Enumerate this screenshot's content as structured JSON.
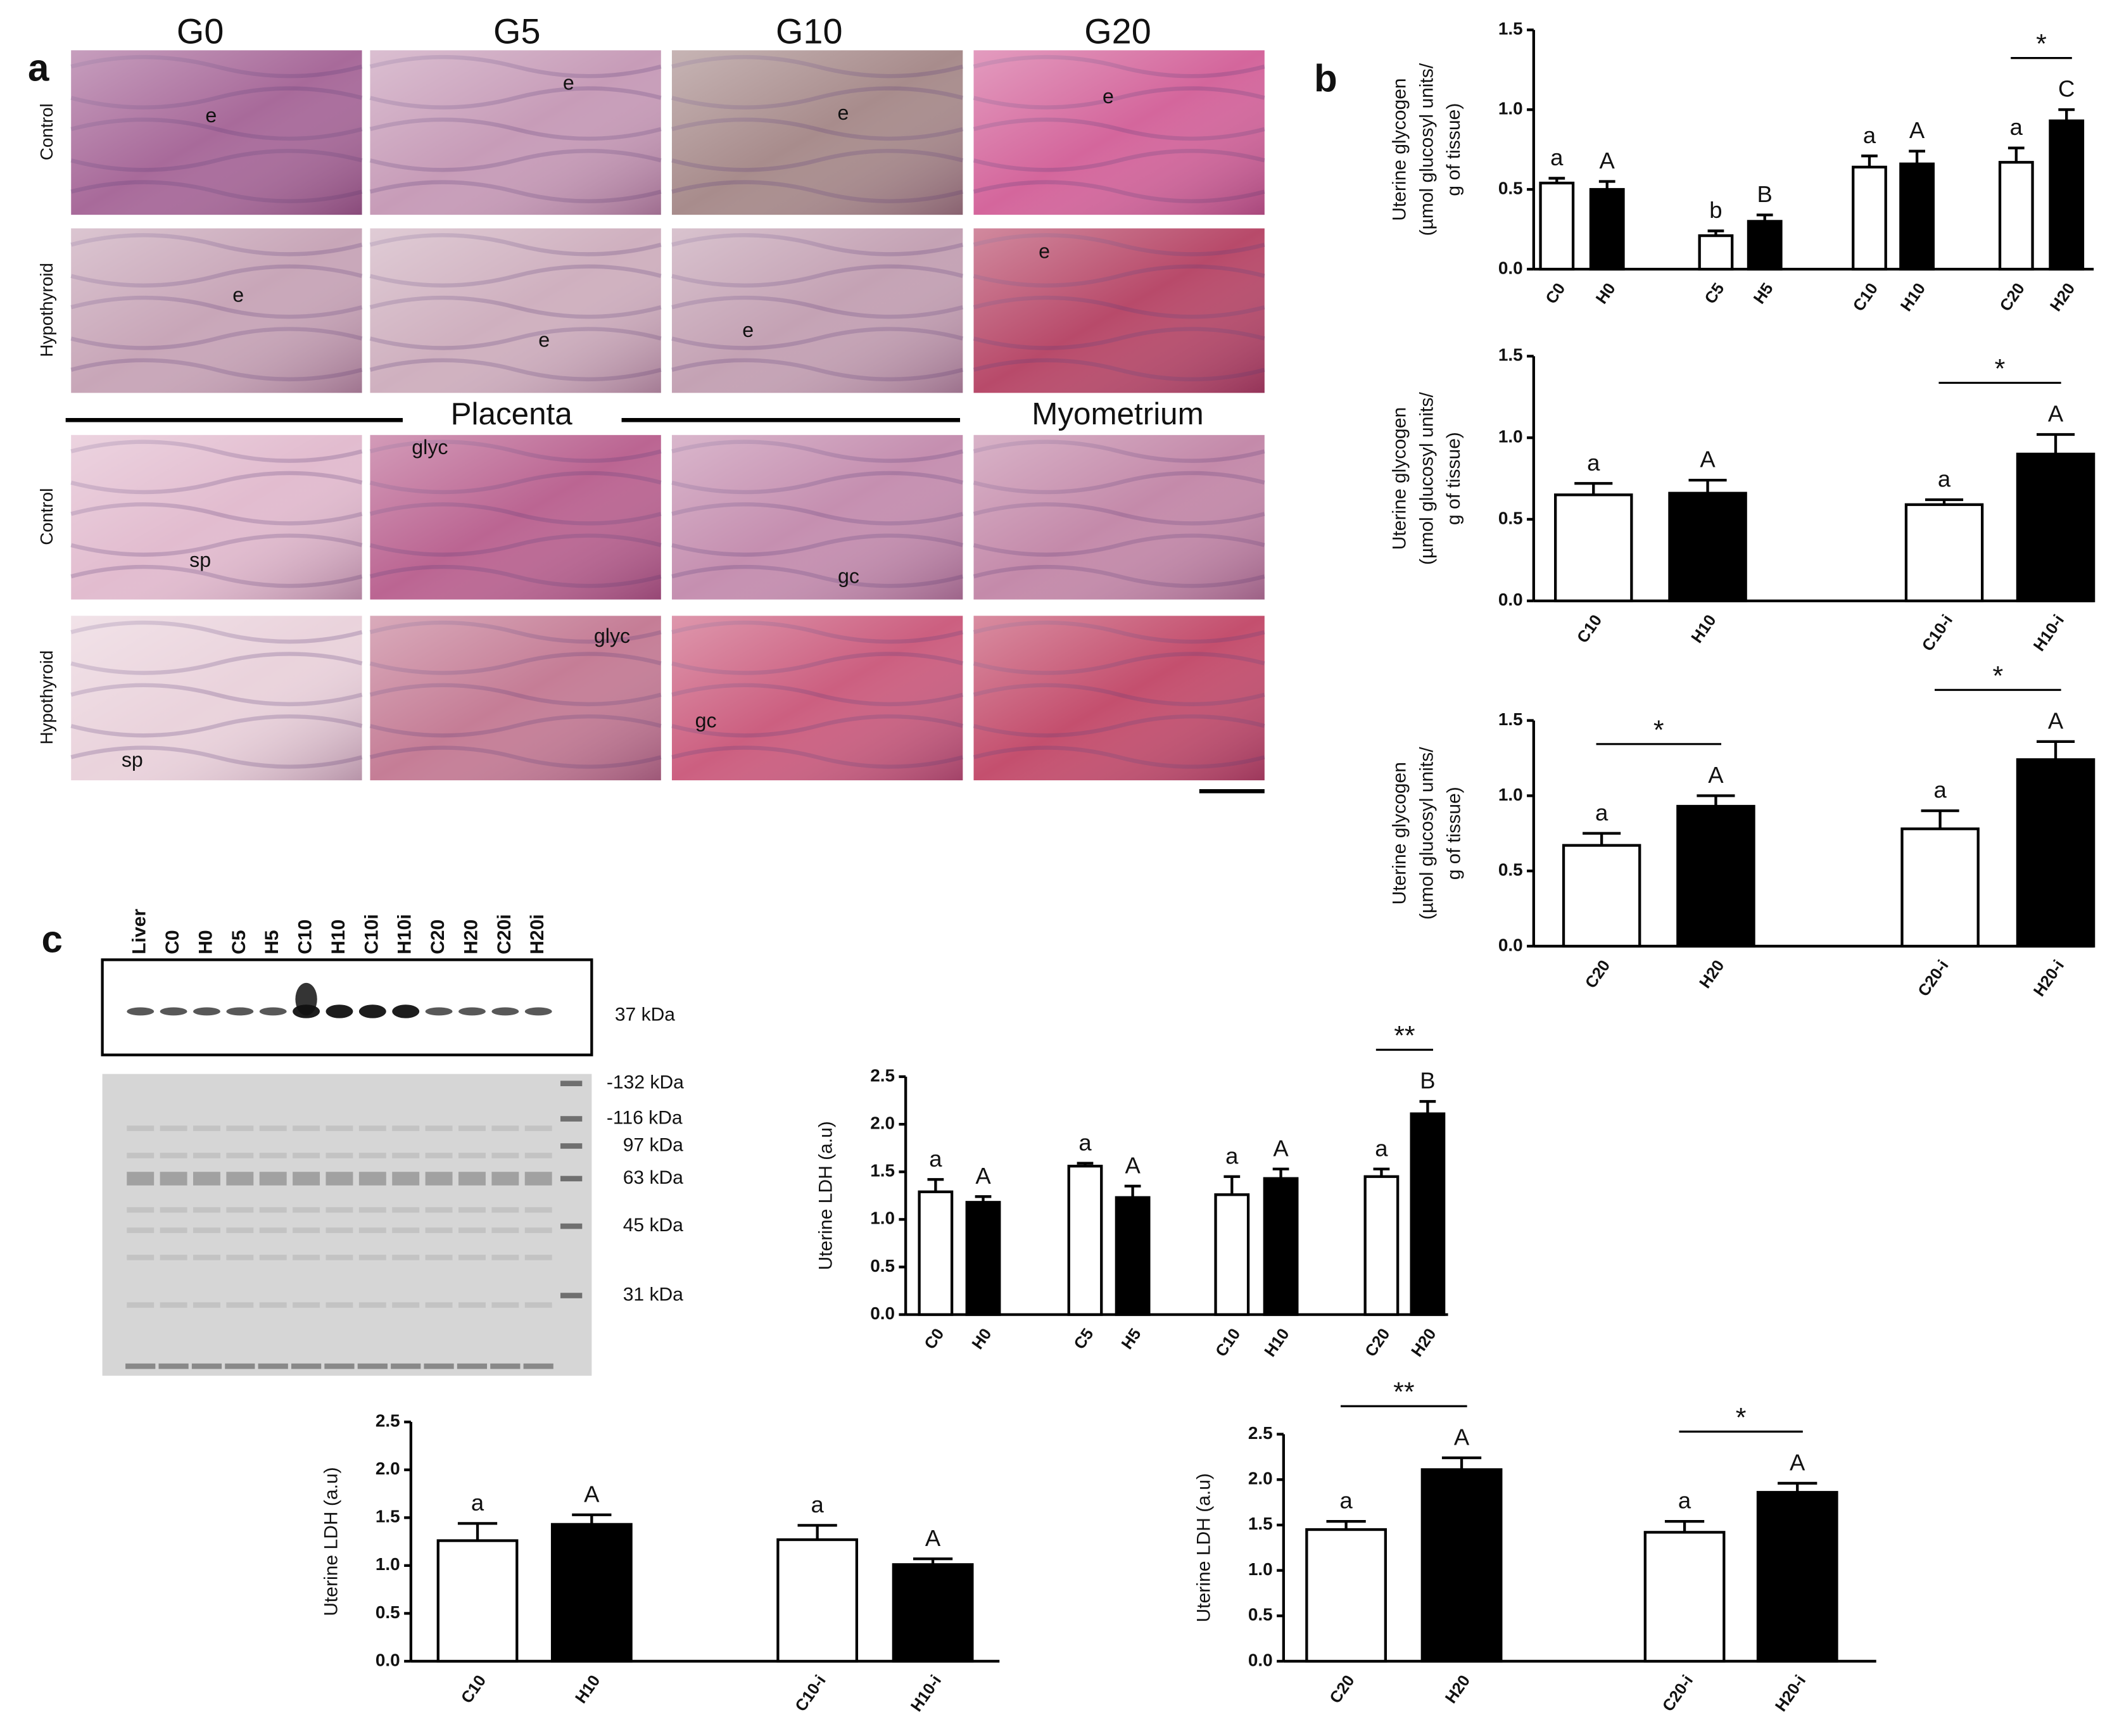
{
  "figure": {
    "panel_labels": [
      "a",
      "b",
      "c"
    ]
  },
  "panel_a": {
    "columns": [
      "G0",
      "G5",
      "G10",
      "G20"
    ],
    "rows": [
      "Control",
      "Hypothyroid",
      "Control",
      "Hypothyroid"
    ],
    "sections": [
      "Placenta",
      "Myometrium"
    ],
    "labels": [
      "e",
      "e",
      "e",
      "e",
      "e",
      "e",
      "e",
      "e",
      "glyc",
      "glyc",
      "sp",
      "sp",
      "gc",
      "gc"
    ]
  },
  "panel_c": {
    "lanes": [
      "Liver",
      "C0",
      "H0",
      "C5",
      "H5",
      "C10",
      "H10",
      "C10i",
      "H10i",
      "C20",
      "H20",
      "C20i",
      "H20i"
    ],
    "blot_label": "37 kDa",
    "markers": [
      "-132 kDa",
      "-116 kDa",
      "97 kDa",
      "63 kDa",
      "45 kDa",
      "31 kDa"
    ]
  },
  "chart_data": [
    {
      "type": "bar",
      "ylabel": [
        "Uterine glycogen",
        "(µmol glucosyl units/",
        "g of tissue)"
      ],
      "ylim": [
        0,
        1.5
      ],
      "yticks": [
        {
          "value": 0,
          "label": "0.0"
        },
        0.5,
        {
          "value": 1,
          "label": "1.0"
        },
        1.5
      ],
      "categories": [
        "C0",
        "H0",
        "C5",
        "H5",
        "C10",
        "H10",
        "C20",
        "H20"
      ],
      "values": [
        0.54,
        0.5,
        0.21,
        0.3,
        0.64,
        0.66,
        0.67,
        0.93
      ],
      "errors": [
        0.03,
        0.05,
        0.03,
        0.04,
        0.07,
        0.08,
        0.09,
        0.07
      ],
      "colors": [
        "#ffffff",
        "#000000",
        "#ffffff",
        "#000000",
        "#ffffff",
        "#000000",
        "#ffffff",
        "#000000"
      ],
      "letters": [
        "a",
        "A",
        "b",
        "B",
        "a",
        "A",
        "a",
        "C"
      ],
      "significance": [
        {
          "label": "*",
          "pair": [
            "C20",
            "H20"
          ]
        }
      ]
    },
    {
      "type": "bar",
      "ylabel": [
        "Uterine glycogen",
        "(µmol glucosyl units/",
        "g of tissue)"
      ],
      "ylim": [
        0,
        1.5
      ],
      "yticks": [
        {
          "value": 0,
          "label": "0.0"
        },
        0.5,
        {
          "value": 1,
          "label": "1.0"
        },
        1.5
      ],
      "categories": [
        "C10",
        "H10",
        "C10-i",
        "H10-i"
      ],
      "values": [
        0.65,
        0.66,
        0.59,
        0.9
      ],
      "errors": [
        0.07,
        0.08,
        0.03,
        0.12
      ],
      "colors": [
        "#ffffff",
        "#000000",
        "#ffffff",
        "#000000"
      ],
      "letters": [
        "a",
        "A",
        "a",
        "A"
      ],
      "significance": [
        {
          "label": "*",
          "pair": [
            "C10-i",
            "H10-i"
          ]
        }
      ]
    },
    {
      "type": "bar",
      "ylabel": [
        "Uterine glycogen",
        "(µmol glucosyl units/",
        "g of tissue)"
      ],
      "ylim": [
        0,
        1.5
      ],
      "yticks": [
        {
          "value": 0,
          "label": "0.0"
        },
        0.5,
        {
          "value": 1,
          "label": "1.0"
        },
        1.5
      ],
      "categories": [
        "C20",
        "H20",
        "C20-i",
        "H20-i"
      ],
      "values": [
        0.67,
        0.93,
        0.78,
        1.24
      ],
      "errors": [
        0.08,
        0.07,
        0.12,
        0.12
      ],
      "colors": [
        "#ffffff",
        "#000000",
        "#ffffff",
        "#000000"
      ],
      "letters": [
        "a",
        "A",
        "a",
        "A"
      ],
      "significance": [
        {
          "label": "*",
          "pair": [
            "C20",
            "H20"
          ]
        },
        {
          "label": "*",
          "pair": [
            "C20-i",
            "H20-i"
          ]
        }
      ]
    },
    {
      "type": "bar",
      "ylabel": [
        "Uterine LDH (a.u)"
      ],
      "ylim": [
        0,
        2.5
      ],
      "yticks": [
        {
          "value": 0,
          "label": "0.0"
        },
        0.5,
        {
          "value": 1,
          "label": "1.0"
        },
        1.5,
        {
          "value": 2,
          "label": "2.0"
        },
        2.5
      ],
      "categories": [
        "C0",
        "H0",
        "C5",
        "H5",
        "C10",
        "H10",
        "C20",
        "H20"
      ],
      "values": [
        1.29,
        1.18,
        1.56,
        1.23,
        1.26,
        1.43,
        1.45,
        2.11
      ],
      "errors": [
        0.13,
        0.06,
        0.03,
        0.12,
        0.19,
        0.1,
        0.08,
        0.13
      ],
      "colors": [
        "#ffffff",
        "#000000",
        "#ffffff",
        "#000000",
        "#ffffff",
        "#000000",
        "#ffffff",
        "#000000"
      ],
      "letters": [
        "a",
        "A",
        "a",
        "A",
        "a",
        "A",
        "a",
        "B"
      ],
      "significance": [
        {
          "label": "**",
          "pair": [
            "C20",
            "H20"
          ]
        }
      ]
    },
    {
      "type": "bar",
      "ylabel": [
        "Uterine LDH (a.u)"
      ],
      "ylim": [
        0,
        2.5
      ],
      "yticks": [
        {
          "value": 0,
          "label": "0.0"
        },
        0.5,
        {
          "value": 1,
          "label": "1.0"
        },
        1.5,
        {
          "value": 2,
          "label": "2.0"
        },
        2.5
      ],
      "categories": [
        "C10",
        "H10",
        "C10-i",
        "H10-i"
      ],
      "values": [
        1.26,
        1.43,
        1.27,
        1.01
      ],
      "errors": [
        0.18,
        0.1,
        0.15,
        0.06
      ],
      "colors": [
        "#ffffff",
        "#000000",
        "#ffffff",
        "#000000"
      ],
      "letters": [
        "a",
        "A",
        "a",
        "A"
      ],
      "significance": []
    },
    {
      "type": "bar",
      "ylabel": [
        "Uterine LDH (a.u)"
      ],
      "ylim": [
        0,
        2.5
      ],
      "yticks": [
        {
          "value": 0,
          "label": "0.0"
        },
        0.5,
        {
          "value": 1,
          "label": "1.0"
        },
        1.5,
        {
          "value": 2,
          "label": "2.0"
        },
        2.5
      ],
      "categories": [
        "C20",
        "H20",
        "C20-i",
        "H20-i"
      ],
      "values": [
        1.45,
        2.11,
        1.42,
        1.86
      ],
      "errors": [
        0.09,
        0.13,
        0.12,
        0.1
      ],
      "colors": [
        "#ffffff",
        "#000000",
        "#ffffff",
        "#000000"
      ],
      "letters": [
        "a",
        "A",
        "a",
        "A"
      ],
      "significance": [
        {
          "label": "**",
          "pair": [
            "C20",
            "H20"
          ]
        },
        {
          "label": "*",
          "pair": [
            "C20-i",
            "H20-i"
          ]
        }
      ]
    }
  ]
}
